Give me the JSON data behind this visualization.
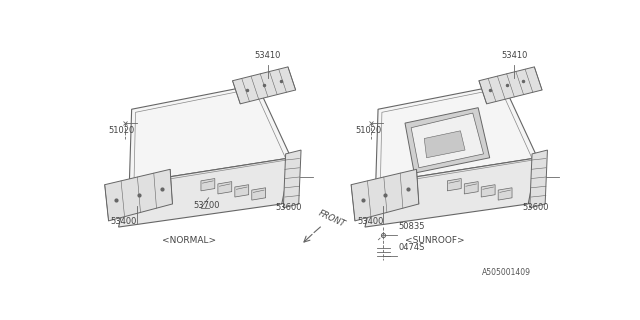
{
  "bg_color": "#ffffff",
  "line_color": "#666666",
  "text_color": "#444444",
  "fig_width": 6.4,
  "fig_height": 3.2,
  "dpi": 100,
  "normal_label": "<NORMAL>",
  "sunroof_label": "<SUNROOF>",
  "front_label": "FRONT",
  "watermark": "A505001409",
  "lw": 0.8
}
